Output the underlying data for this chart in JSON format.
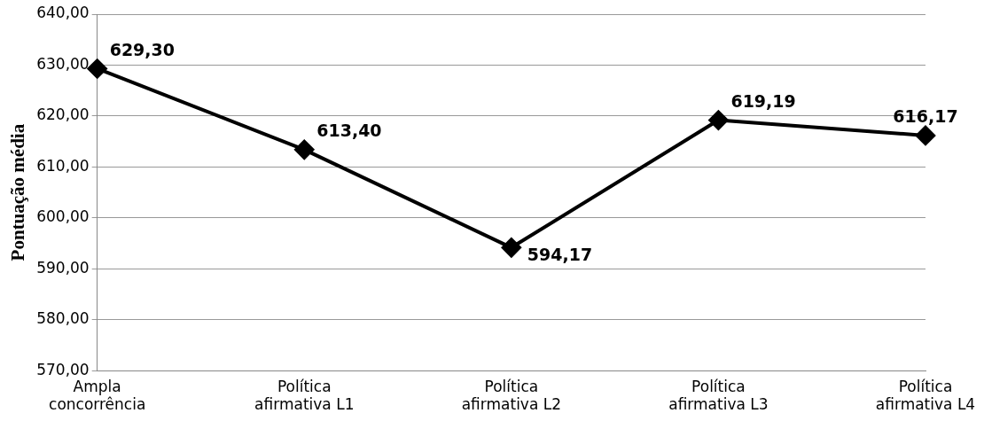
{
  "chart_data": {
    "type": "line",
    "ylabel": "Pontuação média",
    "categories": [
      "Ampla concorrência",
      "Política afirmativa L1",
      "Política afirmativa L2",
      "Política afirmativa L3",
      "Política afirmativa L4"
    ],
    "values": [
      629.3,
      613.4,
      594.17,
      619.19,
      616.17
    ],
    "value_labels": [
      "629,30",
      "613,40",
      "594,17",
      "619,19",
      "616,17"
    ],
    "color": "#000000",
    "marker": "diamond",
    "line_style": "solid",
    "grid": "y",
    "legend": false,
    "ylim": [
      570,
      640
    ],
    "yticks": [
      {
        "value": 570,
        "label": "570,00"
      },
      {
        "value": 580,
        "label": "580,00"
      },
      {
        "value": 590,
        "label": "590,00"
      },
      {
        "value": 600,
        "label": "600,00"
      },
      {
        "value": 610,
        "label": "610,00"
      },
      {
        "value": 620,
        "label": "620,00"
      },
      {
        "value": 630,
        "label": "630,00"
      },
      {
        "value": 640,
        "label": "640,00"
      }
    ]
  }
}
